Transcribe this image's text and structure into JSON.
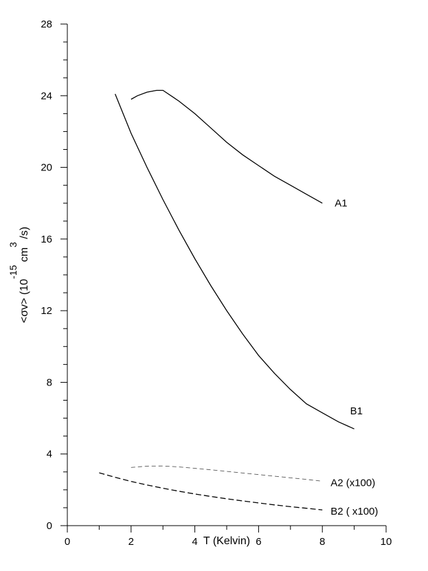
{
  "chart_data": {
    "type": "line",
    "title": "",
    "xlabel": "T (Kelvin)",
    "ylabel": {
      "main": "<σv> (10",
      "exp1": "-15",
      "mid": " cm",
      "exp2": "3",
      "end": " /s)"
    },
    "xlim": [
      0,
      10
    ],
    "ylim": [
      0,
      28
    ],
    "x_ticks": [
      0,
      2,
      4,
      6,
      8,
      10
    ],
    "y_ticks": [
      0,
      4,
      8,
      12,
      16,
      20,
      24,
      28
    ],
    "grid": false,
    "legend": "none",
    "series": [
      {
        "name": "A1",
        "style": "solid",
        "points": [
          [
            2.0,
            23.8
          ],
          [
            2.2,
            24.0
          ],
          [
            2.5,
            24.2
          ],
          [
            2.8,
            24.3
          ],
          [
            3.0,
            24.3
          ],
          [
            3.5,
            23.7
          ],
          [
            4.0,
            23.0
          ],
          [
            4.5,
            22.2
          ],
          [
            5.0,
            21.4
          ],
          [
            5.5,
            20.7
          ],
          [
            6.0,
            20.1
          ],
          [
            6.5,
            19.5
          ],
          [
            7.0,
            19.0
          ],
          [
            7.5,
            18.5
          ],
          [
            8.0,
            18.0
          ]
        ]
      },
      {
        "name": "B1",
        "style": "solid",
        "points": [
          [
            1.5,
            24.1
          ],
          [
            2.0,
            21.9
          ],
          [
            2.5,
            20.0
          ],
          [
            3.0,
            18.2
          ],
          [
            3.5,
            16.5
          ],
          [
            4.0,
            14.9
          ],
          [
            4.5,
            13.4
          ],
          [
            5.0,
            12.0
          ],
          [
            5.5,
            10.7
          ],
          [
            6.0,
            9.5
          ],
          [
            6.5,
            8.5
          ],
          [
            7.0,
            7.6
          ],
          [
            7.5,
            6.8
          ],
          [
            8.0,
            6.3
          ],
          [
            8.5,
            5.8
          ],
          [
            9.0,
            5.4
          ]
        ]
      },
      {
        "name": "A2 (x100)",
        "style": "dashed-light",
        "points": [
          [
            2.0,
            3.25
          ],
          [
            2.5,
            3.32
          ],
          [
            3.0,
            3.33
          ],
          [
            3.5,
            3.28
          ],
          [
            4.0,
            3.2
          ],
          [
            4.5,
            3.12
          ],
          [
            5.0,
            3.03
          ],
          [
            5.5,
            2.94
          ],
          [
            6.0,
            2.85
          ],
          [
            6.5,
            2.76
          ],
          [
            7.0,
            2.67
          ],
          [
            7.5,
            2.58
          ],
          [
            8.0,
            2.48
          ]
        ]
      },
      {
        "name": "B2 ( x100)",
        "style": "dashed",
        "points": [
          [
            1.0,
            2.95
          ],
          [
            1.5,
            2.7
          ],
          [
            2.0,
            2.47
          ],
          [
            2.5,
            2.27
          ],
          [
            3.0,
            2.09
          ],
          [
            3.5,
            1.92
          ],
          [
            4.0,
            1.77
          ],
          [
            4.5,
            1.63
          ],
          [
            5.0,
            1.5
          ],
          [
            5.5,
            1.38
          ],
          [
            6.0,
            1.27
          ],
          [
            6.5,
            1.16
          ],
          [
            7.0,
            1.06
          ],
          [
            7.5,
            0.97
          ],
          [
            8.0,
            0.88
          ]
        ]
      }
    ]
  }
}
